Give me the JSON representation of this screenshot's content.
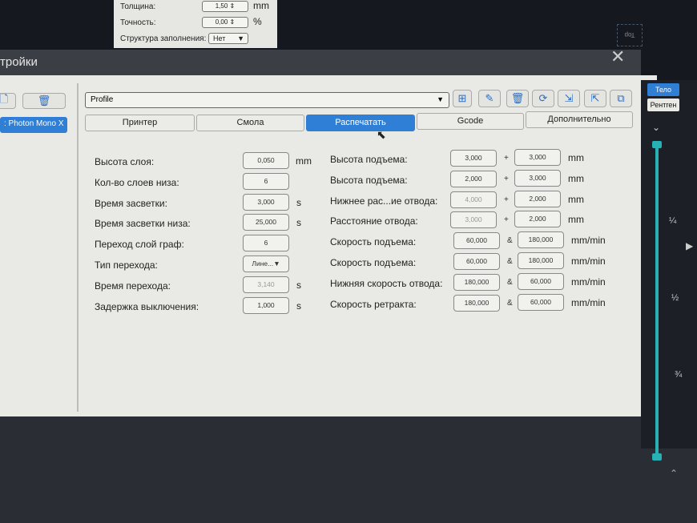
{
  "top_popup": {
    "rows": [
      {
        "label": "Толщина:",
        "value": "1,50",
        "unit": "mm"
      },
      {
        "label": "Точность:",
        "value": "0,00",
        "unit": "%"
      },
      {
        "label": "Структура заполнения:",
        "value": "Нет"
      }
    ]
  },
  "viewcube": {
    "label": "Top"
  },
  "dialog": {
    "title": "тройки",
    "close": "✕",
    "printer_list": {
      "selected": ": Photon Mono X"
    },
    "profile": {
      "value": "Profile"
    },
    "toolbar": [
      "new-profile",
      "edit",
      "delete",
      "refresh",
      "import",
      "export",
      "save-as"
    ],
    "tabs": [
      {
        "label": "Принтер",
        "active": false
      },
      {
        "label": "Смола",
        "active": false
      },
      {
        "label": "Распечатать",
        "active": true
      },
      {
        "label": "Gcode",
        "active": false
      },
      {
        "label": "Дополнительно",
        "active": false
      }
    ],
    "left_fields": [
      {
        "label": "Высота слоя:",
        "value": "0,050",
        "unit": "mm"
      },
      {
        "label": "Кол-во слоев низа:",
        "value": "6",
        "unit": ""
      },
      {
        "label": "Время засветки:",
        "value": "3,000",
        "unit": "s"
      },
      {
        "label": "Время засветки низа:",
        "value": "25,000",
        "unit": "s"
      },
      {
        "label": "Переход слой граф:",
        "value": "6",
        "unit": ""
      },
      {
        "label": "Тип перехода:",
        "value": "Лине...▼",
        "unit": ""
      },
      {
        "label": "Время перехода:",
        "value": "3,140",
        "unit": "s",
        "disabled": true
      },
      {
        "label": "Задержка выключения:",
        "value": "1,000",
        "unit": "s"
      }
    ],
    "right_fields": [
      {
        "label": "Высота подъема:",
        "v1": "3,000",
        "sep": "+",
        "v2": "3,000",
        "unit": "mm"
      },
      {
        "label": "Высота подъема:",
        "v1": "2,000",
        "sep": "+",
        "v2": "3,000",
        "unit": "mm"
      },
      {
        "label": "Нижнее рас...ие отвода:",
        "v1": "4,000",
        "sep": "+",
        "v2": "2,000",
        "unit": "mm"
      },
      {
        "label": "Расстояние отвода:",
        "v1": "3,000",
        "sep": "+",
        "v2": "2,000",
        "unit": "mm"
      },
      {
        "label": "Скорость подъема:",
        "v1": "60,000",
        "sep": "&",
        "v2": "180,000",
        "unit": "mm/min"
      },
      {
        "label": "Скорость подъема:",
        "v1": "60,000",
        "sep": "&",
        "v2": "180,000",
        "unit": "mm/min"
      },
      {
        "label": "Нижняя скорость отвода:",
        "v1": "180,000",
        "sep": "&",
        "v2": "60,000",
        "unit": "mm/min"
      },
      {
        "label": "Скорость ретракта:",
        "v1": "180,000",
        "sep": "&",
        "v2": "60,000",
        "unit": "mm/min"
      }
    ]
  },
  "right_panel": {
    "view_body": "Тело",
    "view_xray": "Рентген",
    "slider_ticks": [
      "¼",
      "½",
      "¾"
    ]
  }
}
